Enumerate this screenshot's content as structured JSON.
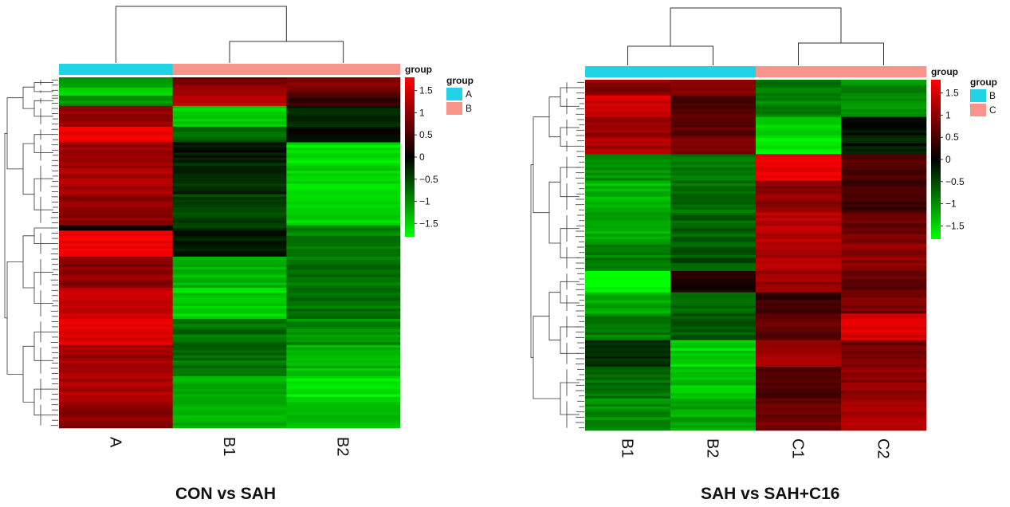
{
  "colors": {
    "high": "#ff0000",
    "mid": "#000000",
    "low": "#00ff00",
    "group_A": "#22d3e6",
    "group_B": "#f8948c",
    "group_C": "#f8948c",
    "tree": "#333333"
  },
  "chart_data": [
    {
      "type": "heatmap",
      "caption": "CON vs SAH",
      "columns": [
        "A",
        "B1",
        "B2"
      ],
      "column_groups": [
        "A",
        "B",
        "B"
      ],
      "annotation_label": "group",
      "legend_title": "group",
      "legend": [
        {
          "label": "A",
          "color": "#22d3e6"
        },
        {
          "label": "B",
          "color": "#f8948c"
        }
      ],
      "color_scale": {
        "range": [
          -1.8,
          1.8
        ],
        "ticks": [
          1.5,
          1,
          0.5,
          0,
          -0.5,
          -1,
          -1.5
        ],
        "tick_labels": [
          "1.5",
          "1",
          "0.5",
          "0",
          "−0.5",
          "−1",
          "−1.5"
        ]
      },
      "row_blocks": [
        {
          "rows": 4,
          "values": [
            -1.1,
            0.9,
            0.9
          ]
        },
        {
          "rows": 3,
          "values": [
            -1.6,
            1.1,
            0.7
          ]
        },
        {
          "rows": 4,
          "values": [
            -1.0,
            1.3,
            0.4
          ]
        },
        {
          "rows": 8,
          "values": [
            1.0,
            -1.5,
            -0.2
          ]
        },
        {
          "rows": 6,
          "values": [
            1.7,
            -0.7,
            0.0
          ]
        },
        {
          "rows": 8,
          "values": [
            1.1,
            -0.1,
            -1.6
          ]
        },
        {
          "rows": 12,
          "values": [
            1.2,
            -0.3,
            -1.5
          ]
        },
        {
          "rows": 12,
          "values": [
            1.0,
            -0.5,
            -1.5
          ]
        },
        {
          "rows": 2,
          "values": [
            0.0,
            -0.4,
            -1.0
          ]
        },
        {
          "rows": 10,
          "values": [
            1.7,
            -0.2,
            -0.9
          ]
        },
        {
          "rows": 12,
          "values": [
            1.0,
            -1.3,
            -0.8
          ]
        },
        {
          "rows": 12,
          "values": [
            1.4,
            -1.5,
            -0.8
          ]
        },
        {
          "rows": 10,
          "values": [
            1.6,
            -0.8,
            -1.0
          ]
        },
        {
          "rows": 12,
          "values": [
            1.1,
            -0.8,
            -1.3
          ]
        },
        {
          "rows": 10,
          "values": [
            1.2,
            -1.2,
            -1.6
          ]
        },
        {
          "rows": 10,
          "values": [
            1.0,
            -1.2,
            -1.4
          ]
        }
      ]
    },
    {
      "type": "heatmap",
      "caption": "SAH vs SAH+C16",
      "columns": [
        "B1",
        "B2",
        "C1",
        "C2"
      ],
      "column_groups": [
        "B",
        "B",
        "C",
        "C"
      ],
      "annotation_label": "group",
      "legend_title": "group",
      "legend": [
        {
          "label": "B",
          "color": "#22d3e6"
        },
        {
          "label": "C",
          "color": "#f8948c"
        }
      ],
      "color_scale": {
        "range": [
          -1.8,
          1.8
        ],
        "ticks": [
          1.5,
          1,
          0.5,
          0,
          -0.5,
          -1,
          -1.5
        ],
        "tick_labels": [
          "1.5",
          "1",
          "0.5",
          "0",
          "−0.5",
          "−1",
          "−1.5"
        ]
      },
      "row_blocks": [
        {
          "rows": 6,
          "values": [
            1.0,
            1.0,
            -0.9,
            -1.0
          ]
        },
        {
          "rows": 8,
          "values": [
            1.5,
            0.5,
            -0.9,
            -1.1
          ]
        },
        {
          "rows": 8,
          "values": [
            1.0,
            0.7,
            -1.5,
            -0.1
          ]
        },
        {
          "rows": 6,
          "values": [
            1.2,
            0.9,
            -1.7,
            -0.2
          ]
        },
        {
          "rows": 10,
          "values": [
            -1.0,
            -0.9,
            1.6,
            0.5
          ]
        },
        {
          "rows": 12,
          "values": [
            -1.3,
            -0.8,
            1.0,
            0.4
          ]
        },
        {
          "rows": 12,
          "values": [
            -1.2,
            -0.7,
            1.3,
            0.8
          ]
        },
        {
          "rows": 10,
          "values": [
            -0.9,
            -0.6,
            1.2,
            1.0
          ]
        },
        {
          "rows": 8,
          "values": [
            -1.7,
            0.2,
            1.1,
            0.7
          ]
        },
        {
          "rows": 8,
          "values": [
            -1.2,
            -0.8,
            0.4,
            0.8
          ]
        },
        {
          "rows": 10,
          "values": [
            -0.9,
            -0.6,
            0.7,
            1.6
          ]
        },
        {
          "rows": 10,
          "values": [
            -0.3,
            -1.5,
            1.2,
            0.8
          ]
        },
        {
          "rows": 12,
          "values": [
            -0.8,
            -1.4,
            0.5,
            1.0
          ]
        },
        {
          "rows": 12,
          "values": [
            -1.0,
            -1.2,
            0.8,
            1.2
          ]
        }
      ]
    }
  ]
}
